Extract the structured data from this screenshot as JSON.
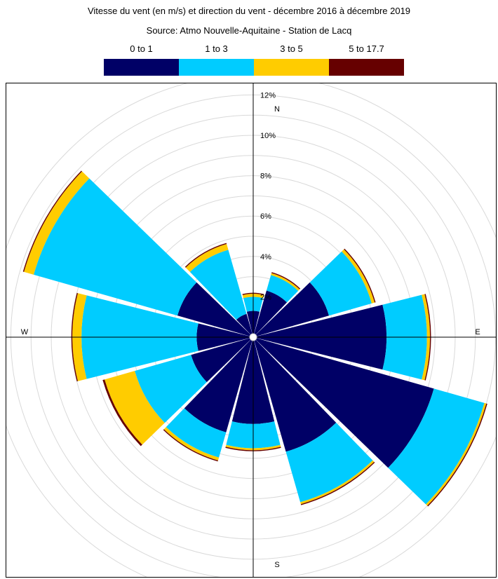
{
  "title_before": "Vitesse du vent (en m",
  "title_unit_denominator": "s",
  "title_after": ") et direction du vent - décembre 2016 à décembre 2019",
  "source": "Source: Atmo Nouvelle-Aquitaine - Station de Lacq",
  "chart_data": {
    "type": "wind-rose",
    "title": "Vitesse du vent (en m/s) et direction du vent - décembre 2016 à décembre 2019",
    "subtitle": "Source: Atmo Nouvelle-Aquitaine - Station de Lacq",
    "legend": [
      {
        "label": "0 to 1",
        "color": "#000066"
      },
      {
        "label": "1 to 3",
        "color": "#00ccff"
      },
      {
        "label": "3 to 5",
        "color": "#ffcc00"
      },
      {
        "label": "5 to 17.7",
        "color": "#660000"
      }
    ],
    "compass": [
      "N",
      "E",
      "S",
      "W"
    ],
    "radial_ticks": [
      "2%",
      "4%",
      "6%",
      "8%",
      "10%",
      "12%"
    ],
    "radial_max": 12,
    "sector_width_deg": 30,
    "unit": "%",
    "directions": [
      0,
      30,
      60,
      90,
      120,
      150,
      180,
      210,
      240,
      270,
      300,
      330
    ],
    "series": [
      {
        "name": "0 to 1",
        "values": [
          1.3,
          2.4,
          3.9,
          6.6,
          9.3,
          5.9,
          4.3,
          4.9,
          3.2,
          2.8,
          3.9,
          1.2
        ]
      },
      {
        "name": "1 to 3",
        "values": [
          2.0,
          3.2,
          6.1,
          8.6,
          11.9,
          8.5,
          5.5,
          6.2,
          6.1,
          8.5,
          11.3,
          4.5
        ]
      },
      {
        "name": "3 to 5",
        "values": [
          2.15,
          3.3,
          6.25,
          8.75,
          12.0,
          8.6,
          5.6,
          6.35,
          7.65,
          8.95,
          11.8,
          4.8
        ]
      },
      {
        "name": "5 to 17.7",
        "values": [
          2.2,
          3.35,
          6.3,
          8.8,
          12.05,
          8.65,
          5.65,
          6.4,
          7.75,
          9.0,
          11.85,
          4.85
        ]
      }
    ]
  }
}
